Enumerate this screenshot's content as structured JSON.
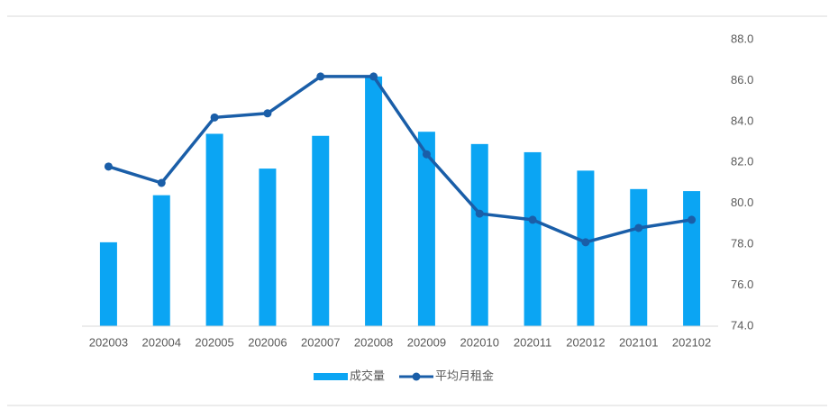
{
  "chart_data": {
    "type": "bar-line",
    "categories": [
      "202003",
      "202004",
      "202005",
      "202006",
      "202007",
      "202008",
      "202009",
      "202010",
      "202011",
      "202012",
      "202101",
      "202102"
    ],
    "series": [
      {
        "name": "成交量",
        "type": "bar",
        "color": "#0ba5f3",
        "values": [
          78.1,
          80.4,
          83.4,
          81.7,
          83.3,
          86.2,
          83.5,
          82.9,
          82.5,
          81.6,
          80.7,
          80.6
        ]
      },
      {
        "name": "平均月租金",
        "type": "line",
        "color": "#1a5ea8",
        "values": [
          81.8,
          81.0,
          84.2,
          84.4,
          86.2,
          86.2,
          82.4,
          79.5,
          79.2,
          78.1,
          78.8,
          79.2
        ]
      }
    ],
    "ylim": [
      74,
      88
    ],
    "yticks": [
      {
        "value": 74,
        "label": "74.0"
      },
      {
        "value": 76,
        "label": "76.0"
      },
      {
        "value": 78,
        "label": "78.0"
      },
      {
        "value": 80,
        "label": "80.0"
      },
      {
        "value": 82,
        "label": "82.0"
      },
      {
        "value": 84,
        "label": "84.0"
      },
      {
        "value": 86,
        "label": "86.0"
      },
      {
        "value": 88,
        "label": "88.0"
      }
    ],
    "y_axis_side": "right",
    "legend": "bottom"
  }
}
